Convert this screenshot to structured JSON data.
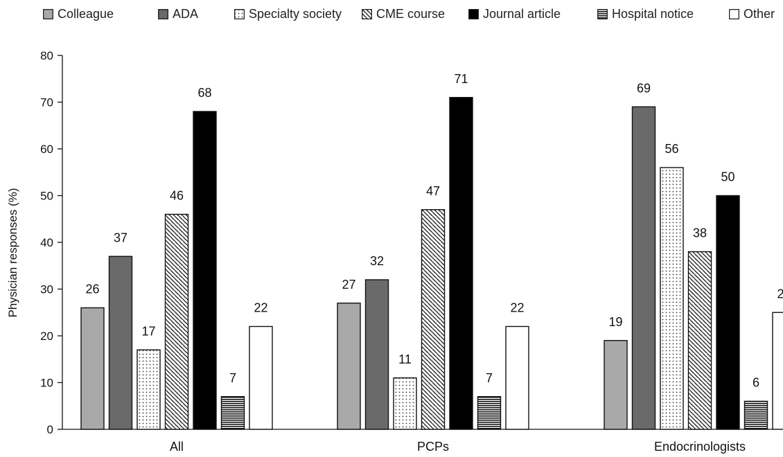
{
  "colors": {
    "colleague": "#a9a9a9",
    "ada": "#6a6a6a",
    "journal": "#000000",
    "other": "#ffffff",
    "outline": "#111111"
  },
  "chart_data": {
    "type": "bar",
    "categories": [
      "All",
      "PCPs",
      "Endocrinologists"
    ],
    "series": [
      {
        "name": "Colleague",
        "values": [
          26,
          27,
          19
        ],
        "pattern": "solid-light-gray"
      },
      {
        "name": "ADA",
        "values": [
          37,
          32,
          69
        ],
        "pattern": "solid-dark-gray"
      },
      {
        "name": "Specialty society",
        "values": [
          17,
          11,
          56
        ],
        "pattern": "dotted"
      },
      {
        "name": "CME course",
        "values": [
          46,
          47,
          38
        ],
        "pattern": "diagonal-hatch"
      },
      {
        "name": "Journal article",
        "values": [
          68,
          71,
          50
        ],
        "pattern": "solid-black"
      },
      {
        "name": "Hospital notice",
        "values": [
          7,
          7,
          6
        ],
        "pattern": "horizontal-lines"
      },
      {
        "name": "Other",
        "values": [
          22,
          22,
          25
        ],
        "pattern": "solid-white"
      }
    ],
    "ylabel": "Physician responses (%)",
    "xlabel": "",
    "ylim": [
      0,
      80
    ],
    "yticks": [
      "0",
      "10",
      "20",
      "30",
      "40",
      "50",
      "60",
      "70",
      "80"
    ],
    "data_labels": true,
    "grid": false,
    "legend_position": "top"
  }
}
